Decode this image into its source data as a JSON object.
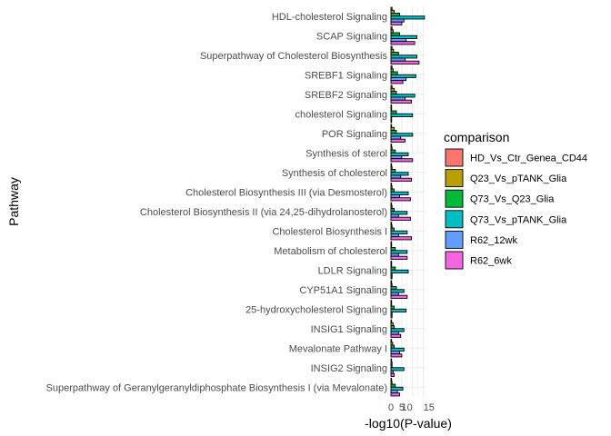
{
  "chart_data": {
    "type": "bar",
    "orientation": "horizontal",
    "xlabel": "-log10(P-value)",
    "ylabel": "Pathway",
    "xlim": [
      0,
      16
    ],
    "x_ticks": [
      "0",
      "5",
      "10",
      "15"
    ],
    "grid": true,
    "legend": {
      "title": "comparison",
      "position": "right"
    },
    "categories": [
      "HDL-cholesterol Signaling",
      "SCAP Signaling",
      "Superpathway of Cholesterol Biosynthesis",
      "SREBF1 Signaling",
      "SREBF2 Signaling",
      "cholesterol Signaling",
      "POR Signaling",
      "Synthesis of sterol",
      "Synthesis of cholesterol",
      "Cholesterol Biosynthesis III (via Desmosterol)",
      "Cholesterol Biosynthesis II (via 24,25-dihydrolanosterol)",
      "Cholesterol Biosynthesis I",
      "Metabolism of cholesterol",
      "LDLR Signaling",
      "CYP51A1 Signaling",
      "25-hydroxycholesterol Signaling",
      "INSIG1 Signaling",
      "Mevalonate Pathway I",
      "INSIG2 Signaling",
      "Superpathway of Geranylgeranyldiphosphate Biosynthesis I (via Mevalonate)"
    ],
    "series": [
      {
        "name": "HD_Vs_Ctr_Genea_CD44",
        "color": "#F8766D",
        "values": [
          0.5,
          0.5,
          0.5,
          0.5,
          0.5,
          0.3,
          0.3,
          0.3,
          0.3,
          0.3,
          0.3,
          0.3,
          0.3,
          0.3,
          0.3,
          0.3,
          0.3,
          0.3,
          0.3,
          0.3
        ]
      },
      {
        "name": "Q23_Vs_pTANK_Glia",
        "color": "#B79F00",
        "values": [
          1.5,
          1.0,
          1.2,
          1.0,
          1.5,
          0.3,
          1.5,
          0.5,
          0.5,
          0.5,
          0.5,
          0.5,
          0.3,
          0.3,
          0.5,
          0.3,
          1.0,
          0.8,
          0.5,
          0.5
        ]
      },
      {
        "name": "Q73_Vs_Q23_Glia",
        "color": "#00BA38",
        "values": [
          4.0,
          4.0,
          3.5,
          3.0,
          2.5,
          2.5,
          2.5,
          2.0,
          2.0,
          1.5,
          1.5,
          1.5,
          2.0,
          2.0,
          2.5,
          1.5,
          1.5,
          1.5,
          0.5,
          2.0
        ]
      },
      {
        "name": "Q73_Vs_pTANK_Glia",
        "color": "#00BFC4",
        "values": [
          15.5,
          12.0,
          12.0,
          11.5,
          11.0,
          10.0,
          10.0,
          8.0,
          8.0,
          8.0,
          7.5,
          7.5,
          7.5,
          8.0,
          6.0,
          7.0,
          6.0,
          6.0,
          6.0,
          5.5
        ]
      },
      {
        "name": "R62_12wk",
        "color": "#619CFF",
        "values": [
          6.0,
          7.0,
          6.5,
          7.0,
          6.5,
          0.3,
          4.5,
          5.0,
          4.5,
          4.0,
          3.5,
          3.5,
          3.5,
          0.5,
          3.5,
          0.5,
          3.5,
          4.0,
          1.0,
          3.0
        ]
      },
      {
        "name": "R62_6wk",
        "color": "#F564E3",
        "values": [
          5.0,
          11.0,
          13.0,
          5.5,
          9.5,
          0.3,
          6.5,
          10.0,
          9.5,
          9.0,
          9.0,
          9.5,
          7.5,
          0.5,
          7.5,
          0.5,
          4.5,
          5.0,
          1.5,
          4.0
        ]
      }
    ]
  }
}
